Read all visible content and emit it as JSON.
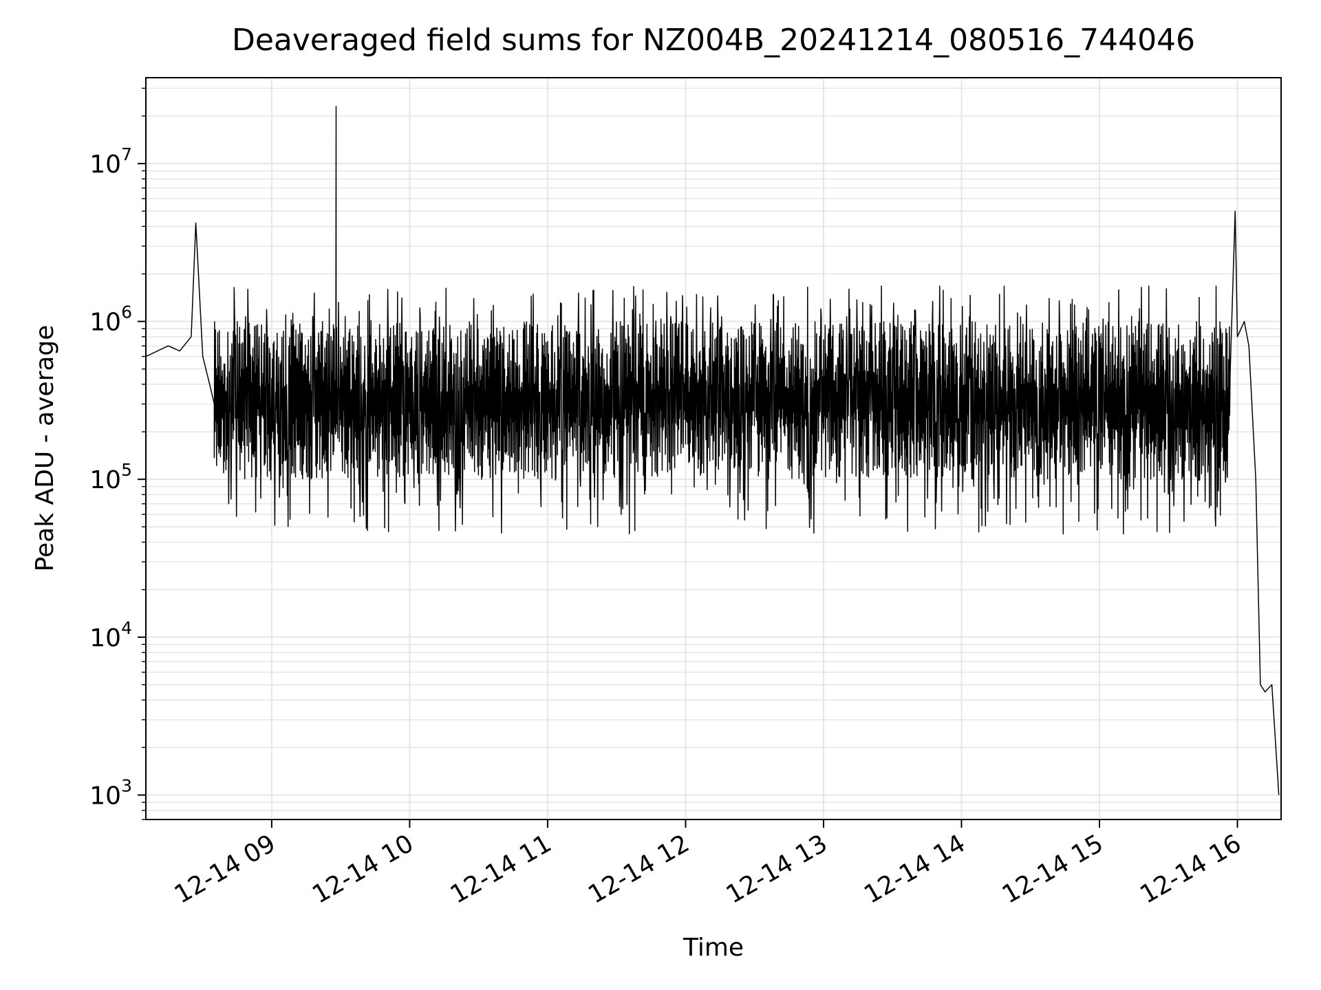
{
  "chart_data": {
    "type": "line",
    "title": "Deaveraged field sums for NZ004B_20241214_080516_744046",
    "xlabel": "Time",
    "ylabel": "Peak ADU - average",
    "yscale": "log",
    "ylim": [
      700,
      35000000
    ],
    "xlim": [
      "2024-12-14 08:05:16",
      "2024-12-14 16:19:00"
    ],
    "grid": true,
    "line_color": "#000000",
    "grid_color": "#e6e6e6",
    "x_ticks": [
      {
        "value": "2024-12-14 09:00",
        "label": "12-14 09"
      },
      {
        "value": "2024-12-14 10:00",
        "label": "12-14 10"
      },
      {
        "value": "2024-12-14 11:00",
        "label": "12-14 11"
      },
      {
        "value": "2024-12-14 12:00",
        "label": "12-14 12"
      },
      {
        "value": "2024-12-14 13:00",
        "label": "12-14 13"
      },
      {
        "value": "2024-12-14 14:00",
        "label": "12-14 14"
      },
      {
        "value": "2024-12-14 15:00",
        "label": "12-14 15"
      },
      {
        "value": "2024-12-14 16:00",
        "label": "12-14 16"
      }
    ],
    "y_ticks": [
      {
        "value": 1000,
        "base": "10",
        "exp": "3"
      },
      {
        "value": 10000,
        "base": "10",
        "exp": "4"
      },
      {
        "value": 100000,
        "base": "10",
        "exp": "5"
      },
      {
        "value": 1000000,
        "base": "10",
        "exp": "6"
      },
      {
        "value": 10000000,
        "base": "10",
        "exp": "7"
      }
    ],
    "series": [
      {
        "x": [
          "2024-12-14 08:05",
          "2024-12-14 08:15",
          "2024-12-14 08:20",
          "2024-12-14 08:25",
          "2024-12-14 08:27",
          "2024-12-14 08:30",
          "2024-12-14 08:33",
          "2024-12-14 08:35",
          "2024-12-14 08:40",
          "2024-12-14 08:45",
          "2024-12-14 08:50",
          "2024-12-14 09:00",
          "2024-12-14 09:10",
          "2024-12-14 09:20",
          "2024-12-14 09:25",
          "2024-12-14 09:28",
          "2024-12-14 09:30",
          "2024-12-14 09:35",
          "2024-12-14 09:45",
          "2024-12-14 10:00",
          "2024-12-14 10:15",
          "2024-12-14 10:30",
          "2024-12-14 10:45",
          "2024-12-14 11:00",
          "2024-12-14 11:15",
          "2024-12-14 11:30",
          "2024-12-14 11:45",
          "2024-12-14 12:00",
          "2024-12-14 12:15",
          "2024-12-14 12:30",
          "2024-12-14 12:45",
          "2024-12-14 13:00",
          "2024-12-14 13:15",
          "2024-12-14 13:30",
          "2024-12-14 13:45",
          "2024-12-14 14:00",
          "2024-12-14 14:15",
          "2024-12-14 14:30",
          "2024-12-14 14:45",
          "2024-12-14 15:00",
          "2024-12-14 15:15",
          "2024-12-14 15:30",
          "2024-12-14 15:45",
          "2024-12-14 15:55",
          "2024-12-14 15:59",
          "2024-12-14 16:00",
          "2024-12-14 16:03",
          "2024-12-14 16:05",
          "2024-12-14 16:08",
          "2024-12-14 16:10",
          "2024-12-14 16:12",
          "2024-12-14 16:15",
          "2024-12-14 16:18"
        ],
        "y": [
          600000,
          700000,
          650000,
          800000,
          4200000,
          600000,
          400000,
          300000,
          250000,
          400000,
          300000,
          180000,
          200000,
          250000,
          1200000,
          23000000,
          300000,
          400000,
          350000,
          300000,
          280000,
          250000,
          300000,
          350000,
          400000,
          300000,
          350000,
          400000,
          600000,
          700000,
          650000,
          500000,
          400000,
          450000,
          400000,
          350000,
          300000,
          250000,
          300000,
          250000,
          200000,
          150000,
          300000,
          900000,
          5000000,
          800000,
          1000000,
          700000,
          100000,
          5000,
          4500,
          5000,
          1000
        ],
        "band": {
          "x_from": "2024-12-14 08:35",
          "x_to": "2024-12-14 15:57",
          "typical_low": 100000,
          "typical_high": 1000000,
          "observed_min": 45000,
          "observed_max": 1700000
        }
      }
    ]
  }
}
